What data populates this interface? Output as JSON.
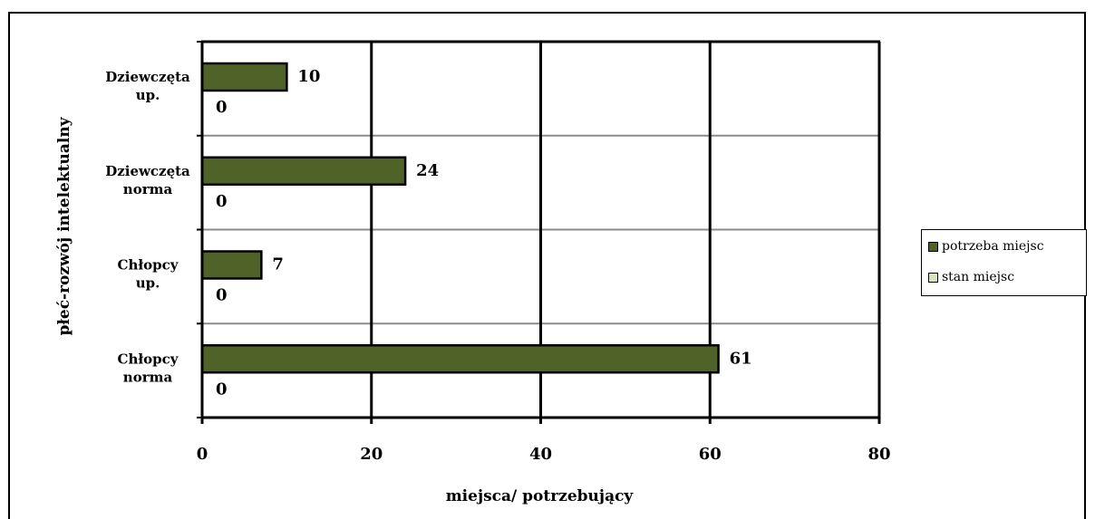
{
  "chart_data": {
    "type": "bar",
    "orientation": "horizontal",
    "categories": [
      [
        "Dziewczęta",
        "up."
      ],
      [
        "Dziewczęta",
        "norma"
      ],
      [
        "Chłopcy",
        "up."
      ],
      [
        "Chłopcy",
        "norma"
      ]
    ],
    "series": [
      {
        "name": "potrzeba miejsc",
        "values": [
          10,
          24,
          7,
          61
        ],
        "color": "#4f6228"
      },
      {
        "name": "stan miejsc",
        "values": [
          0,
          0,
          0,
          0
        ],
        "color": "#d7e4bd"
      }
    ],
    "xlabel": "miejsca/ potrzebujący",
    "ylabel": "płeć-rozwój intelektualny",
    "xlim": [
      0,
      80
    ],
    "xticks": [
      "0",
      "20",
      "40",
      "60",
      "80"
    ],
    "grid": true,
    "legend_position": "right"
  }
}
